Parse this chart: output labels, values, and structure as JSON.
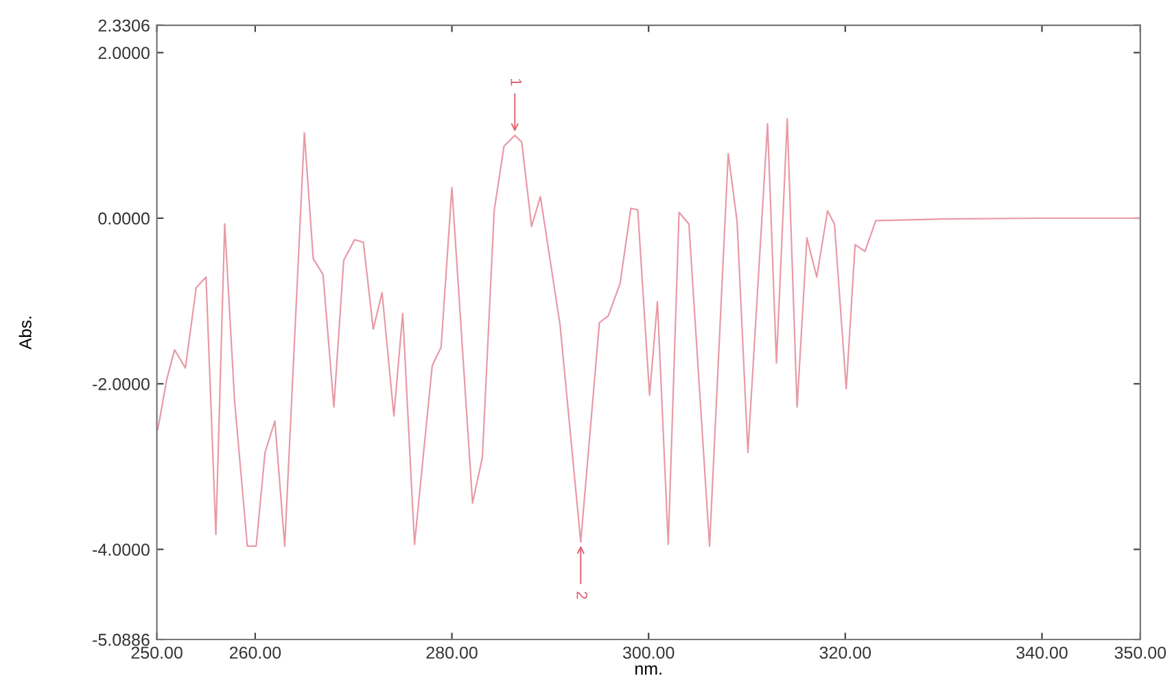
{
  "chart_data": {
    "type": "line",
    "xlabel": "nm.",
    "ylabel": "Abs.",
    "x": [
      250.1,
      251.0,
      251.8,
      252.9,
      254.0,
      255.0,
      256.0,
      256.9,
      257.9,
      259.2,
      260.1,
      261.0,
      262.0,
      263.0,
      265.0,
      265.9,
      266.9,
      268.0,
      269.0,
      270.1,
      271.0,
      272.0,
      272.9,
      274.1,
      275.0,
      276.2,
      278.0,
      278.9,
      280.0,
      282.1,
      283.1,
      284.3,
      285.3,
      286.4,
      287.1,
      288.1,
      289.0,
      291.0,
      293.1,
      295.0,
      295.9,
      297.1,
      298.2,
      298.9,
      300.1,
      300.9,
      302.0,
      303.1,
      304.1,
      306.2,
      308.1,
      309.0,
      310.1,
      312.1,
      313.0,
      314.1,
      315.1,
      316.1,
      317.1,
      318.2,
      318.9,
      320.1,
      321.0,
      322.0,
      323.1,
      330.0,
      340.0,
      350.0
    ],
    "series": [
      {
        "color": "#e89aa6",
        "values": [
          -2.55,
          -1.95,
          -1.59,
          -1.81,
          -0.84,
          -0.71,
          -3.82,
          -0.07,
          -2.2,
          -3.96,
          -3.96,
          -2.83,
          -2.45,
          -3.96,
          1.03,
          -0.49,
          -0.68,
          -2.28,
          -0.51,
          -0.26,
          -0.29,
          -1.34,
          -0.9,
          -2.39,
          -1.15,
          -3.94,
          -1.78,
          -1.56,
          0.37,
          -3.44,
          -2.89,
          0.09,
          0.87,
          1.0,
          0.92,
          -0.1,
          0.26,
          -1.29,
          -3.91,
          -1.26,
          -1.18,
          -0.79,
          0.12,
          0.1,
          -2.14,
          -1.01,
          -3.94,
          0.07,
          -0.07,
          -3.96,
          0.78,
          -0.04,
          -2.83,
          1.14,
          -1.75,
          1.2,
          -2.28,
          -0.24,
          -0.71,
          0.09,
          -0.07,
          -2.06,
          -0.32,
          -0.4,
          -0.03,
          -0.01,
          0.0,
          0.0
        ]
      }
    ],
    "xlim": [
      250,
      350
    ],
    "ylim": [
      -5.0886,
      2.3306
    ],
    "xticks": [
      {
        "value": 250,
        "label": "250.00"
      },
      {
        "value": 260,
        "label": "260.00"
      },
      {
        "value": 280,
        "label": "280.00"
      },
      {
        "value": 300,
        "label": "300.00"
      },
      {
        "value": 320,
        "label": "320.00"
      },
      {
        "value": 340,
        "label": "340.00"
      },
      {
        "value": 350,
        "label": "350.00"
      }
    ],
    "yticks": [
      {
        "value": -5.0886,
        "label": "-5.0886"
      },
      {
        "value": -4,
        "label": "-4.0000"
      },
      {
        "value": -2,
        "label": "-2.0000"
      },
      {
        "value": 0,
        "label": "0.0000"
      },
      {
        "value": 2,
        "label": "2.0000"
      },
      {
        "value": 2.3306,
        "label": "2.3306"
      }
    ],
    "annotations": [
      {
        "text": "1",
        "x": 286.4,
        "y": 1.0
      },
      {
        "text": "2",
        "x": 293.1,
        "y": -3.91
      }
    ],
    "grid": false,
    "marker": "none",
    "line_style": "solid"
  }
}
